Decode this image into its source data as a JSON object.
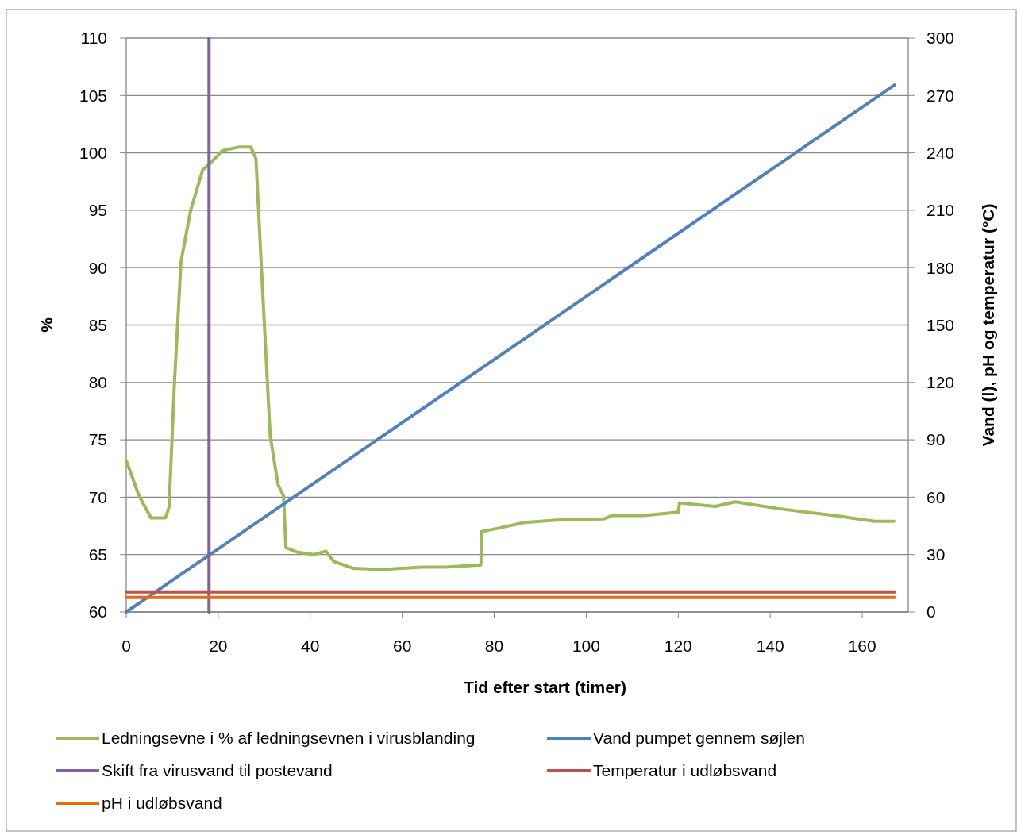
{
  "chart_data": {
    "type": "line",
    "xlabel": "Tid efter start (timer)",
    "ylabel": "%",
    "y2label": "Vand  (l), pH og temperatur (°C)",
    "xlim": [
      0,
      170
    ],
    "xticks": [
      0,
      20,
      40,
      60,
      80,
      100,
      120,
      140,
      160
    ],
    "ylim": [
      60,
      110
    ],
    "yticks": [
      60,
      65,
      70,
      75,
      80,
      85,
      90,
      95,
      100,
      105,
      110
    ],
    "y2lim": [
      0,
      300
    ],
    "y2ticks": [
      0,
      30,
      60,
      90,
      120,
      150,
      180,
      210,
      240,
      270,
      300
    ],
    "grid": "y",
    "legend": "bottom",
    "marker": "none",
    "line_style": "solid",
    "series": [
      {
        "name": "Ledningsevne i % af ledningsevnen i virusblanding",
        "color": "#9bbb59",
        "x": [
          0,
          2.8,
          5.4,
          8.5,
          9.3,
          10.5,
          11.9,
          14,
          16.6,
          18.3,
          20.9,
          24.4,
          27.1,
          28.2,
          29.5,
          31.3,
          33,
          34.2,
          34.7,
          37.3,
          40.8,
          43.4,
          45.1,
          49.4,
          55.5,
          64.1,
          69.3,
          77.1,
          77.2,
          79.7,
          86.6,
          93.5,
          103.8,
          105.6,
          112.5,
          120,
          120.3,
          128,
          132.4,
          141.9,
          154,
          162.6,
          166.9
        ],
        "values": [
          73.2,
          70.1,
          68.2,
          68.2,
          69.1,
          80.1,
          90.5,
          95,
          98.5,
          99.1,
          100.2,
          100.5,
          100.5,
          99.5,
          89.1,
          75.3,
          71.1,
          70.1,
          65.6,
          65.2,
          65,
          65.3,
          64.4,
          63.8,
          63.7,
          63.9,
          63.9,
          64.1,
          67,
          67.2,
          67.8,
          68,
          68.1,
          68.4,
          68.4,
          68.7,
          69.5,
          69.2,
          69.6,
          69,
          68.4,
          67.9,
          67.9
        ]
      },
      {
        "name": "Vand pumpet gennem søjlen",
        "color": "#4f81bd",
        "axis": "y2",
        "x": [
          0,
          167
        ],
        "values": [
          0,
          275.5
        ]
      },
      {
        "name": "Skift fra virusvand til postevand",
        "color": "#8064a2",
        "x": [
          18,
          18
        ],
        "values": [
          60,
          110
        ]
      },
      {
        "name": "Temperatur i udløbsvand",
        "color": "#c0504d",
        "axis": "y2",
        "x": [
          0,
          167
        ],
        "values": [
          10.5,
          10.5
        ]
      },
      {
        "name": "pH i udløbsvand",
        "color": "#e46c0a",
        "axis": "y2",
        "x": [
          0,
          167
        ],
        "values": [
          7.6,
          7.6
        ]
      }
    ]
  }
}
